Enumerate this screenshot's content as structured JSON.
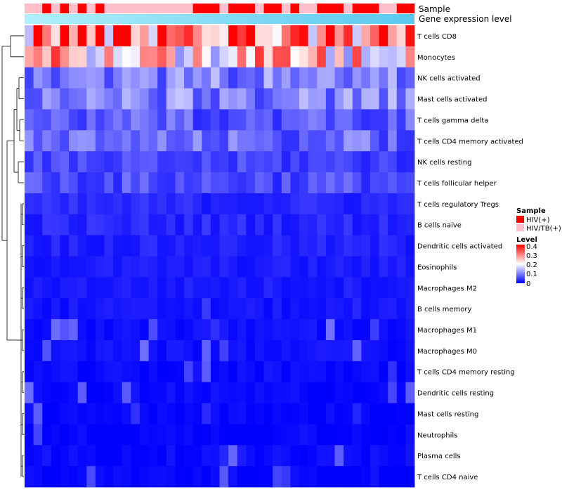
{
  "chart_data": {
    "type": "heatmap",
    "title": "",
    "annotation_tracks": [
      "Sample",
      "Gene expression level"
    ],
    "rows": [
      "T cells CD8",
      "Monocytes",
      "NK cells activated",
      "Mast cells activated",
      "T cells gamma delta",
      "T cells CD4 memory activated",
      "NK cells resting",
      "T cells follicular helper",
      "T cells regulatory  Tregs",
      "B cells naive",
      "Dendritic cells activated",
      "Eosinophils",
      "Macrophages M2",
      "B cells memory",
      "Macrophages M1",
      "Macrophages M0",
      "T cells CD4 memory resting",
      "Dendritic cells resting",
      "Mast cells resting",
      "Neutrophils",
      "Plasma cells",
      "T cells CD4 naive"
    ],
    "n_columns": 44,
    "sample_groups": [
      "HIV/TB(+)",
      "HIV/TB(+)",
      "HIV(+)",
      "HIV/TB(+)",
      "HIV(+)",
      "HIV/TB(+)",
      "HIV(+)",
      "HIV/TB(+)",
      "HIV(+)",
      "HIV/TB(+)",
      "HIV/TB(+)",
      "HIV/TB(+)",
      "HIV/TB(+)",
      "HIV/TB(+)",
      "HIV/TB(+)",
      "HIV/TB(+)",
      "HIV/TB(+)",
      "HIV/TB(+)",
      "HIV/TB(+)",
      "HIV(+)",
      "HIV(+)",
      "HIV(+)",
      "HIV/TB(+)",
      "HIV(+)",
      "HIV(+)",
      "HIV(+)",
      "HIV/TB(+)",
      "HIV(+)",
      "HIV(+)",
      "HIV/TB(+)",
      "HIV(+)",
      "HIV/TB(+)",
      "HIV/TB(+)",
      "HIV(+)",
      "HIV(+)",
      "HIV(+)",
      "HIV/TB(+)",
      "HIV(+)",
      "HIV(+)",
      "HIV(+)",
      "HIV/TB(+)",
      "HIV/TB(+)",
      "HIV(+)",
      "HIV(+)"
    ],
    "row_means": [
      0.33,
      0.24,
      0.1,
      0.1,
      0.07,
      0.08,
      0.05,
      0.06,
      0.03,
      0.03,
      0.025,
      0.02,
      0.02,
      0.015,
      0.012,
      0.012,
      0.006,
      0.006,
      0.004,
      0.003,
      0.006,
      0.005
    ],
    "legend": {
      "sample": {
        "title": "Sample",
        "entries": [
          {
            "label": "HIV(+)",
            "color": "#ff0000"
          },
          {
            "label": "HIV/TB(+)",
            "color": "#ffc0cb"
          }
        ]
      },
      "level": {
        "title": "Level",
        "ticks": [
          "0.4",
          "0.3",
          "0.2",
          "0.1",
          "0"
        ],
        "range": [
          0,
          0.4
        ],
        "colors": [
          "#0000ff",
          "#ffffff",
          "#ff0000"
        ]
      }
    },
    "expression_bar_colors": [
      "#b0f0fa",
      "#5ac8f0"
    ]
  }
}
